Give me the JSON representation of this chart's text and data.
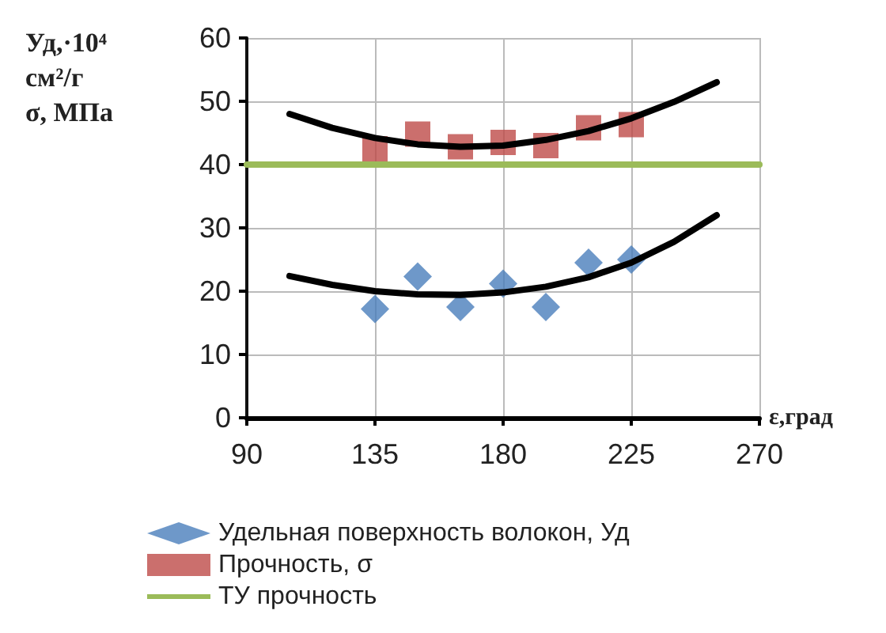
{
  "chart_data": {
    "type": "scatter",
    "ylabel": "Уд,·10⁴\nсм²/г\nσ, МПа",
    "xlabel": "ε,град",
    "xlim": [
      90,
      270
    ],
    "xticks": [
      90,
      135,
      180,
      225,
      270
    ],
    "ylim": [
      0,
      60
    ],
    "yticks": [
      0,
      10,
      20,
      30,
      40,
      50,
      60
    ],
    "grid": true,
    "legend": "bottom",
    "series": [
      {
        "name": "Удельная поверхность волокон, Уд",
        "marker": "diamond",
        "color": "#4a7ebb",
        "x": [
          135,
          150,
          165,
          180,
          195,
          210,
          225
        ],
        "values": [
          17.2,
          22.3,
          17.5,
          21.2,
          17.5,
          24.5,
          25
        ]
      },
      {
        "name": "Прочность, σ",
        "marker": "square",
        "color": "#be4b48",
        "x": [
          135,
          150,
          165,
          180,
          195,
          210,
          225
        ],
        "values": [
          42.5,
          44.8,
          42.8,
          43.5,
          43,
          45.8,
          46.3
        ]
      },
      {
        "name": "ТУ прочность",
        "type": "line",
        "marker": "none",
        "color": "#9bbb59",
        "x": [
          90,
          270
        ],
        "values": [
          40,
          40
        ]
      },
      {
        "type": "line",
        "marker": "none",
        "color": "#000000",
        "x": [
          105,
          120,
          135,
          150,
          165,
          180,
          195,
          210,
          225,
          240,
          255
        ],
        "values": [
          48,
          45.8,
          44.2,
          43.2,
          42.8,
          43,
          43.9,
          45.3,
          47.3,
          49.9,
          53
        ]
      },
      {
        "type": "line",
        "marker": "none",
        "color": "#000000",
        "x": [
          105,
          120,
          135,
          150,
          165,
          180,
          195,
          210,
          225,
          240,
          255
        ],
        "values": [
          22.4,
          21,
          20,
          19.5,
          19.4,
          19.8,
          20.7,
          22.2,
          24.5,
          27.8,
          32
        ]
      }
    ]
  }
}
